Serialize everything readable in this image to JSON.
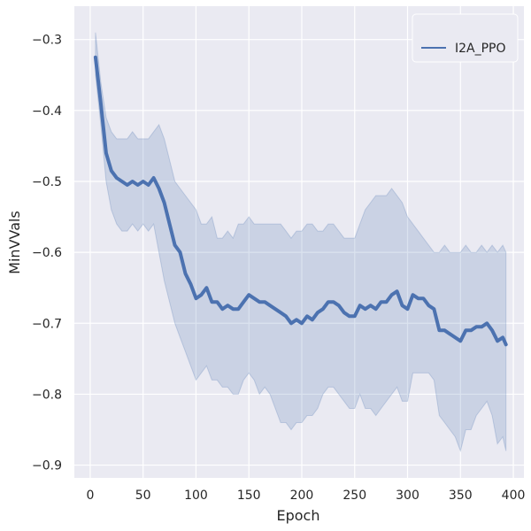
{
  "chart_data": {
    "type": "line",
    "title": "",
    "xlabel": "Epoch",
    "ylabel": "MinVVals",
    "xlim": [
      -15,
      410
    ],
    "ylim": [
      -0.918,
      -0.253
    ],
    "xticks": [
      0,
      50,
      100,
      150,
      200,
      250,
      300,
      350,
      400
    ],
    "xtick_labels": [
      "0",
      "50",
      "100",
      "150",
      "200",
      "250",
      "300",
      "350",
      "400"
    ],
    "yticks": [
      -0.3,
      -0.4,
      -0.5,
      -0.6,
      -0.7,
      -0.8,
      -0.9
    ],
    "ytick_labels": [
      "−0.3",
      "−0.4",
      "−0.5",
      "−0.6",
      "−0.7",
      "−0.8",
      "−0.9"
    ],
    "grid": true,
    "legend_position": "top-right",
    "colors": {
      "background": "#eaeaf2",
      "grid": "#ffffff",
      "line": "#4c72b0",
      "band": "#4c72b0"
    },
    "series": [
      {
        "name": "I2A_PPO",
        "x": [
          5,
          10,
          15,
          20,
          25,
          30,
          35,
          40,
          45,
          50,
          55,
          60,
          65,
          70,
          75,
          80,
          85,
          90,
          95,
          100,
          105,
          110,
          115,
          120,
          125,
          130,
          135,
          140,
          145,
          150,
          155,
          160,
          165,
          170,
          175,
          180,
          185,
          190,
          195,
          200,
          205,
          210,
          215,
          220,
          225,
          230,
          235,
          240,
          245,
          250,
          255,
          260,
          265,
          270,
          275,
          280,
          285,
          290,
          295,
          300,
          305,
          310,
          315,
          320,
          325,
          330,
          335,
          340,
          345,
          350,
          355,
          360,
          365,
          370,
          375,
          380,
          385,
          390,
          393
        ],
        "y": [
          -0.325,
          -0.39,
          -0.46,
          -0.485,
          -0.495,
          -0.5,
          -0.505,
          -0.5,
          -0.505,
          -0.5,
          -0.505,
          -0.495,
          -0.51,
          -0.53,
          -0.56,
          -0.59,
          -0.6,
          -0.63,
          -0.645,
          -0.665,
          -0.66,
          -0.65,
          -0.67,
          -0.67,
          -0.68,
          -0.675,
          -0.68,
          -0.68,
          -0.67,
          -0.66,
          -0.665,
          -0.67,
          -0.67,
          -0.675,
          -0.68,
          -0.685,
          -0.69,
          -0.7,
          -0.695,
          -0.7,
          -0.69,
          -0.695,
          -0.685,
          -0.68,
          -0.67,
          -0.67,
          -0.675,
          -0.685,
          -0.69,
          -0.69,
          -0.675,
          -0.68,
          -0.675,
          -0.68,
          -0.67,
          -0.67,
          -0.66,
          -0.655,
          -0.675,
          -0.68,
          -0.66,
          -0.665,
          -0.665,
          -0.675,
          -0.68,
          -0.71,
          -0.71,
          -0.715,
          -0.72,
          -0.725,
          -0.71,
          -0.71,
          -0.705,
          -0.705,
          -0.7,
          -0.71,
          -0.725,
          -0.72,
          -0.73
        ],
        "upper": [
          -0.29,
          -0.36,
          -0.41,
          -0.43,
          -0.44,
          -0.44,
          -0.44,
          -0.43,
          -0.44,
          -0.44,
          -0.44,
          -0.43,
          -0.42,
          -0.44,
          -0.47,
          -0.5,
          -0.51,
          -0.52,
          -0.53,
          -0.54,
          -0.56,
          -0.56,
          -0.55,
          -0.58,
          -0.58,
          -0.57,
          -0.58,
          -0.56,
          -0.56,
          -0.55,
          -0.56,
          -0.56,
          -0.56,
          -0.56,
          -0.56,
          -0.56,
          -0.57,
          -0.58,
          -0.57,
          -0.57,
          -0.56,
          -0.56,
          -0.57,
          -0.57,
          -0.56,
          -0.56,
          -0.57,
          -0.58,
          -0.58,
          -0.58,
          -0.56,
          -0.54,
          -0.53,
          -0.52,
          -0.52,
          -0.52,
          -0.51,
          -0.52,
          -0.53,
          -0.55,
          -0.56,
          -0.57,
          -0.58,
          -0.59,
          -0.6,
          -0.6,
          -0.59,
          -0.6,
          -0.6,
          -0.6,
          -0.59,
          -0.6,
          -0.6,
          -0.59,
          -0.6,
          -0.59,
          -0.6,
          -0.59,
          -0.6
        ],
        "lower": [
          -0.35,
          -0.42,
          -0.5,
          -0.54,
          -0.56,
          -0.57,
          -0.57,
          -0.56,
          -0.57,
          -0.56,
          -0.57,
          -0.56,
          -0.6,
          -0.64,
          -0.67,
          -0.7,
          -0.72,
          -0.74,
          -0.76,
          -0.78,
          -0.77,
          -0.76,
          -0.78,
          -0.78,
          -0.79,
          -0.79,
          -0.8,
          -0.8,
          -0.78,
          -0.77,
          -0.78,
          -0.8,
          -0.79,
          -0.8,
          -0.82,
          -0.84,
          -0.84,
          -0.85,
          -0.84,
          -0.84,
          -0.83,
          -0.83,
          -0.82,
          -0.8,
          -0.79,
          -0.79,
          -0.8,
          -0.81,
          -0.82,
          -0.82,
          -0.8,
          -0.82,
          -0.82,
          -0.83,
          -0.82,
          -0.81,
          -0.8,
          -0.79,
          -0.81,
          -0.81,
          -0.77,
          -0.77,
          -0.77,
          -0.77,
          -0.78,
          -0.83,
          -0.84,
          -0.85,
          -0.86,
          -0.88,
          -0.85,
          -0.85,
          -0.83,
          -0.82,
          -0.81,
          -0.83,
          -0.87,
          -0.86,
          -0.88
        ]
      }
    ]
  }
}
